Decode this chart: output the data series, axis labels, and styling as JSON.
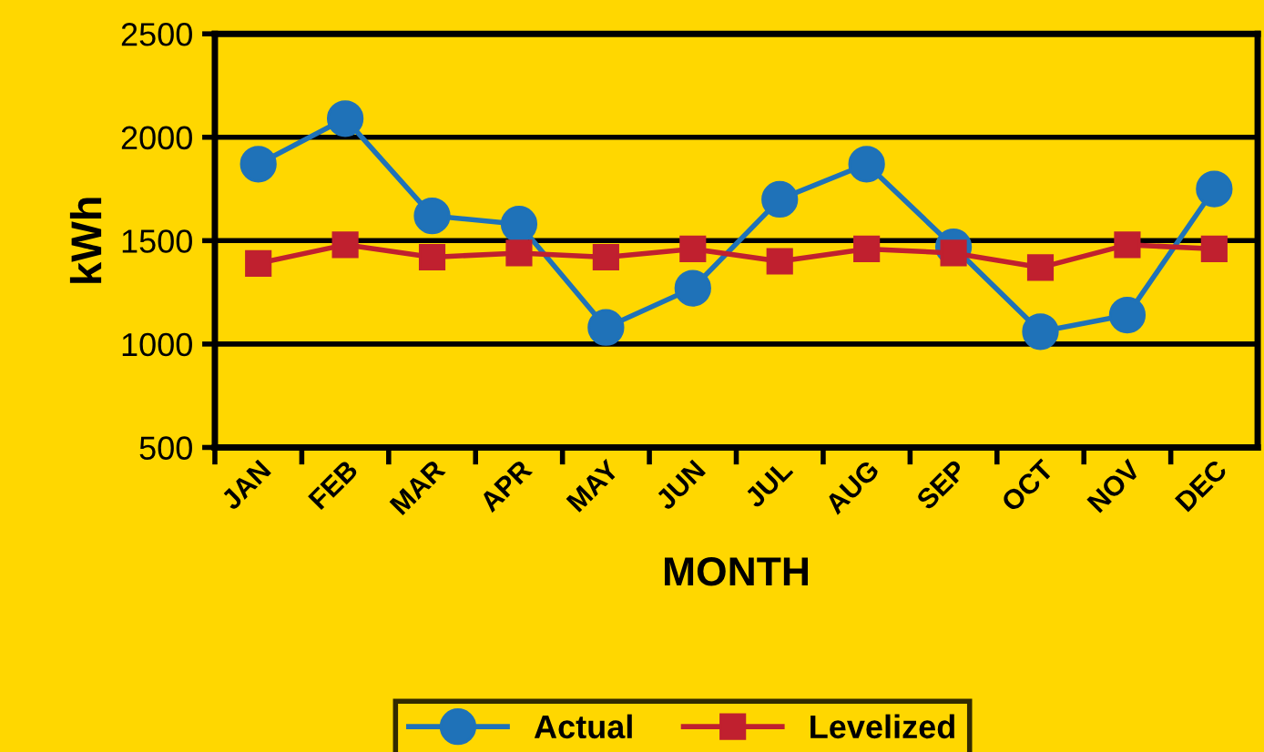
{
  "chart_data": {
    "type": "line",
    "xlabel": "MONTH",
    "ylabel": "kWh",
    "categories": [
      "JAN",
      "FEB",
      "MAR",
      "APR",
      "MAY",
      "JUN",
      "JUL",
      "AUG",
      "SEP",
      "OCT",
      "NOV",
      "DEC"
    ],
    "series": [
      {
        "name": "Actual",
        "color": "#1f72b8",
        "marker": "circle",
        "values": [
          1870,
          2090,
          1620,
          1580,
          1080,
          1270,
          1700,
          1870,
          1470,
          1060,
          1140,
          1750
        ]
      },
      {
        "name": "Levelized",
        "color": "#c0202f",
        "marker": "square",
        "values": [
          1390,
          1480,
          1420,
          1440,
          1420,
          1460,
          1400,
          1460,
          1440,
          1370,
          1480,
          1460
        ]
      }
    ],
    "ylim": [
      500,
      2500
    ],
    "yticks": [
      500,
      1000,
      1500,
      2000,
      2500
    ],
    "grid": "y",
    "legend": "bottom",
    "line_style": "solid"
  }
}
